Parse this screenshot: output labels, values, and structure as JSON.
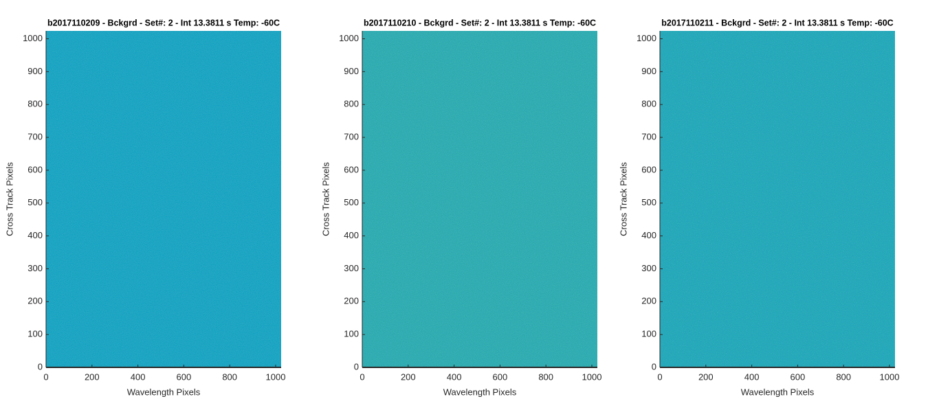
{
  "chart_data": [
    {
      "type": "image",
      "title": "b2017110209 - Bckgrd - Set#: 2 - Int 13.3811 s Temp: -60C",
      "xlabel": "Wavelength Pixels",
      "ylabel": "Cross Track Pixels",
      "xlim": [
        0,
        1024
      ],
      "ylim": [
        0,
        1024
      ],
      "xticks": [
        0,
        200,
        400,
        600,
        800,
        1000
      ],
      "yticks": [
        0,
        100,
        200,
        300,
        400,
        500,
        600,
        700,
        800,
        900,
        1000
      ],
      "color": "#15a2c4"
    },
    {
      "type": "image",
      "title": "b2017110210 - Bckgrd - Set#: 2 - Int 13.3811 s Temp: -60C",
      "xlabel": "Wavelength Pixels",
      "ylabel": "Cross Track Pixels",
      "xlim": [
        0,
        1024
      ],
      "ylim": [
        0,
        1024
      ],
      "xticks": [
        0,
        200,
        400,
        600,
        800,
        1000
      ],
      "yticks": [
        0,
        100,
        200,
        300,
        400,
        500,
        600,
        700,
        800,
        900,
        1000
      ],
      "color": "#2aaab2"
    },
    {
      "type": "image",
      "title": "b2017110211 - Bckgrd - Set#: 2 - Int 13.3811 s Temp: -60C",
      "xlabel": "Wavelength Pixels",
      "ylabel": "Cross Track Pixels",
      "xlim": [
        0,
        1024
      ],
      "ylim": [
        0,
        1024
      ],
      "xticks": [
        0,
        200,
        400,
        600,
        800,
        1000
      ],
      "yticks": [
        0,
        100,
        200,
        300,
        400,
        500,
        600,
        700,
        800,
        900,
        1000
      ],
      "color": "#1fa6bb"
    }
  ]
}
